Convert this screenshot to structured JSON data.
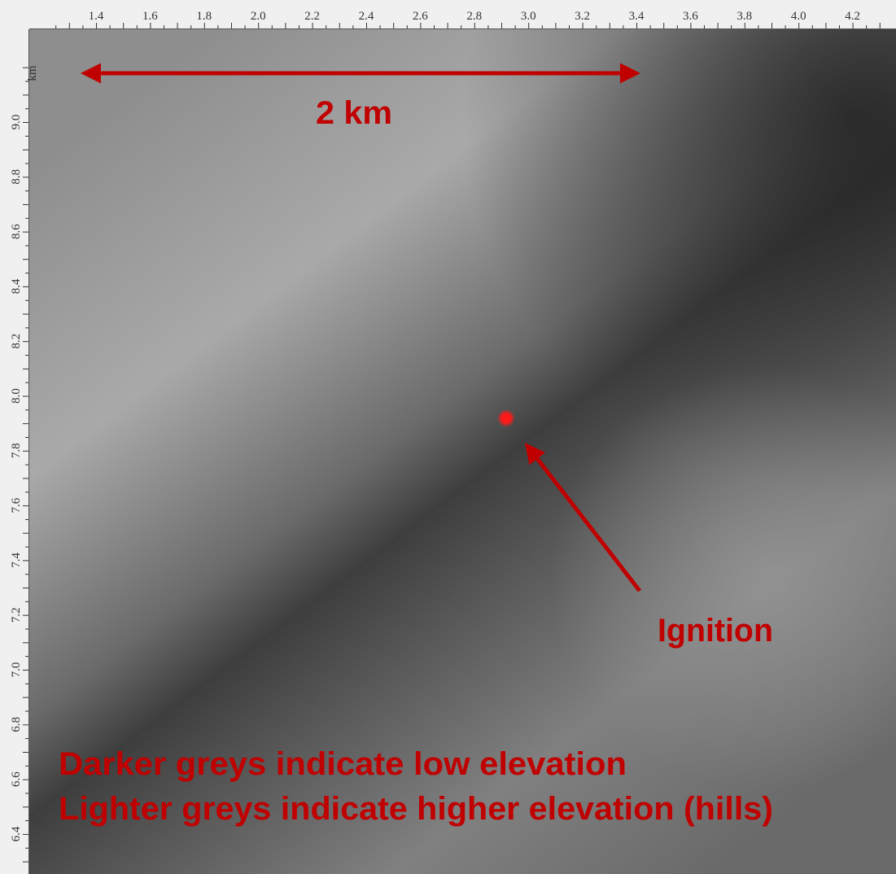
{
  "ruler_top": {
    "labels": [
      "1.4",
      "1.6",
      "1.8",
      "2.0",
      "2.2",
      "2.4",
      "2.6",
      "2.8",
      "3.0",
      "3.2",
      "3.4",
      "3.6",
      "3.8",
      "4.0",
      "4.2"
    ]
  },
  "ruler_left": {
    "unit": "km",
    "labels": [
      "9.0",
      "8.8",
      "8.6",
      "8.4",
      "8.2",
      "8.0",
      "7.8",
      "7.6",
      "7.4",
      "7.2",
      "7.0",
      "6.8",
      "6.6",
      "6.4"
    ]
  },
  "annotations": {
    "scale": "2 km",
    "ignition": "Ignition",
    "legend": [
      "Darker greys indicate low elevation",
      "Lighter greys indicate higher elevation (hills)"
    ]
  }
}
